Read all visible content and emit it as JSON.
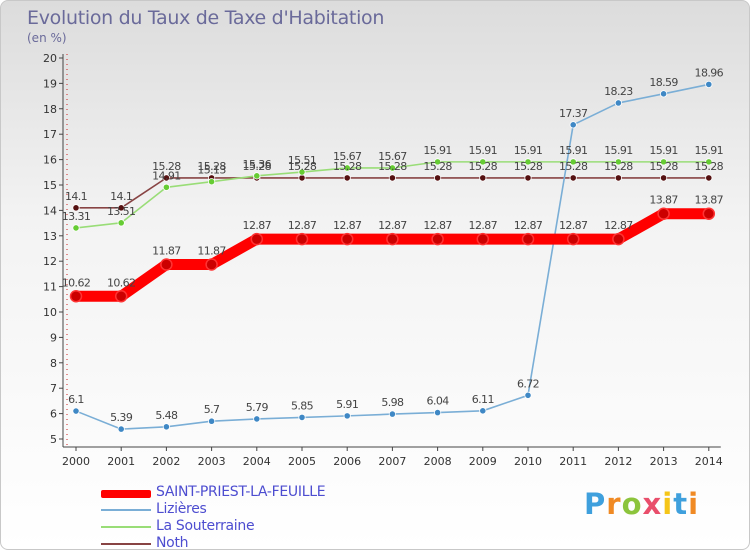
{
  "header": {
    "title": "Evolution du Taux de Taxe d'Habitation",
    "subtitle": "(en %)"
  },
  "logo": {
    "text": "Proxiti",
    "colors": [
      "#3fa0dd",
      "#f08a24",
      "#8cc43c",
      "#e94e6b",
      "#f5c518"
    ]
  },
  "chart_data": {
    "type": "line",
    "title": "Evolution du Taux de Taxe d'Habitation",
    "subtitle": "(en %)",
    "xlabel": "",
    "ylabel": "",
    "categories": [
      "2000",
      "2001",
      "2002",
      "2003",
      "2004",
      "2005",
      "2006",
      "2007",
      "2008",
      "2009",
      "2010",
      "2011",
      "2012",
      "2013",
      "2014"
    ],
    "ylim": [
      5,
      20
    ],
    "yticks": [
      5,
      6,
      7,
      8,
      9,
      10,
      11,
      12,
      13,
      14,
      15,
      16,
      17,
      18,
      19,
      20
    ],
    "grid": false,
    "legend_position": "bottom-left",
    "series": [
      {
        "name": "SAINT-PRIEST-LA-FEUILLE",
        "color": "#ff0000",
        "marker_color": "#cc0000",
        "emphasis": true,
        "values": [
          10.62,
          10.62,
          11.87,
          11.87,
          12.87,
          12.87,
          12.87,
          12.87,
          12.87,
          12.87,
          12.87,
          12.87,
          12.87,
          13.87,
          13.87
        ],
        "labels": [
          "10.62",
          "10.62",
          "11.87",
          "11.87",
          "12.87",
          "12.87",
          "12.87",
          "12.87",
          "12.87",
          "12.87",
          "12.87",
          "12.87",
          "12.87",
          "13.87",
          "13.87"
        ]
      },
      {
        "name": "Lizières",
        "color": "#7aaed6",
        "marker_color": "#3f88c5",
        "emphasis": false,
        "values": [
          6.1,
          5.39,
          5.48,
          5.7,
          5.79,
          5.85,
          5.91,
          5.98,
          6.04,
          6.11,
          6.72,
          17.37,
          18.23,
          18.59,
          18.96
        ],
        "labels": [
          "6.1",
          "5.39",
          "5.48",
          "5.7",
          "5.79",
          "5.85",
          "5.91",
          "5.98",
          "6.04",
          "6.11",
          "6.72",
          "17.37",
          "18.23",
          "18.59",
          "18.96"
        ]
      },
      {
        "name": "La Souterraine",
        "color": "#99dd77",
        "marker_color": "#66cc33",
        "emphasis": false,
        "values": [
          13.31,
          13.51,
          14.91,
          15.13,
          15.36,
          15.51,
          15.67,
          15.67,
          15.91,
          15.91,
          15.91,
          15.91,
          15.91,
          15.91,
          15.91
        ],
        "labels": [
          "13.31",
          "13.51",
          "14.91",
          "15.13",
          "15.36",
          "15.51",
          "15.67",
          "15.67",
          "15.91",
          "15.91",
          "15.91",
          "15.91",
          "15.91",
          "15.91",
          "15.91"
        ]
      },
      {
        "name": "Noth",
        "color": "#884444",
        "marker_color": "#551111",
        "emphasis": false,
        "values": [
          14.1,
          14.1,
          15.28,
          15.28,
          15.28,
          15.28,
          15.28,
          15.28,
          15.28,
          15.28,
          15.28,
          15.28,
          15.28,
          15.28,
          15.28
        ],
        "labels": [
          "14.1",
          "14.1",
          "15.28",
          "15.28",
          "15.28",
          "15.28",
          "15.28",
          "15.28",
          "15.28",
          "15.28",
          "15.28",
          "15.28",
          "15.28",
          "15.28",
          "15.28"
        ]
      }
    ]
  }
}
